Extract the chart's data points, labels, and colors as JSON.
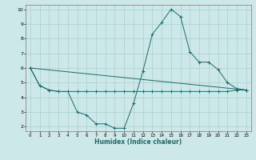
{
  "xlabel": "Humidex (Indice chaleur)",
  "xlim": [
    -0.5,
    23.5
  ],
  "ylim": [
    1.7,
    10.3
  ],
  "yticks": [
    2,
    3,
    4,
    5,
    6,
    7,
    8,
    9,
    10
  ],
  "xticks": [
    0,
    1,
    2,
    3,
    4,
    5,
    6,
    7,
    8,
    9,
    10,
    11,
    12,
    13,
    14,
    15,
    16,
    17,
    18,
    19,
    20,
    21,
    22,
    23
  ],
  "background_color": "#cce8e8",
  "grid_color": "#aacfcf",
  "line_color": "#1a6b6b",
  "line1_x": [
    0,
    1,
    2,
    3,
    4,
    5,
    6,
    7,
    8,
    9,
    10,
    11,
    12,
    13,
    14,
    15,
    16,
    17,
    18,
    19,
    20,
    21,
    22,
    23
  ],
  "line1_y": [
    6.0,
    4.8,
    4.5,
    4.4,
    4.4,
    3.0,
    2.8,
    2.2,
    2.2,
    1.9,
    1.9,
    3.6,
    5.8,
    8.3,
    9.1,
    10.0,
    9.5,
    7.1,
    6.4,
    6.4,
    5.9,
    5.0,
    4.6,
    4.5
  ],
  "line2_x": [
    0,
    1,
    2,
    3,
    4,
    5,
    6,
    7,
    8,
    9,
    10,
    11,
    12,
    13,
    14,
    15,
    16,
    17,
    18,
    19,
    20,
    21,
    22,
    23
  ],
  "line2_y": [
    6.0,
    4.8,
    4.5,
    4.4,
    4.4,
    4.4,
    4.4,
    4.4,
    4.4,
    4.4,
    4.4,
    4.4,
    4.4,
    4.4,
    4.4,
    4.4,
    4.4,
    4.4,
    4.4,
    4.4,
    4.4,
    4.4,
    4.5,
    4.5
  ],
  "line3_x": [
    0,
    23
  ],
  "line3_y": [
    6.0,
    4.5
  ]
}
